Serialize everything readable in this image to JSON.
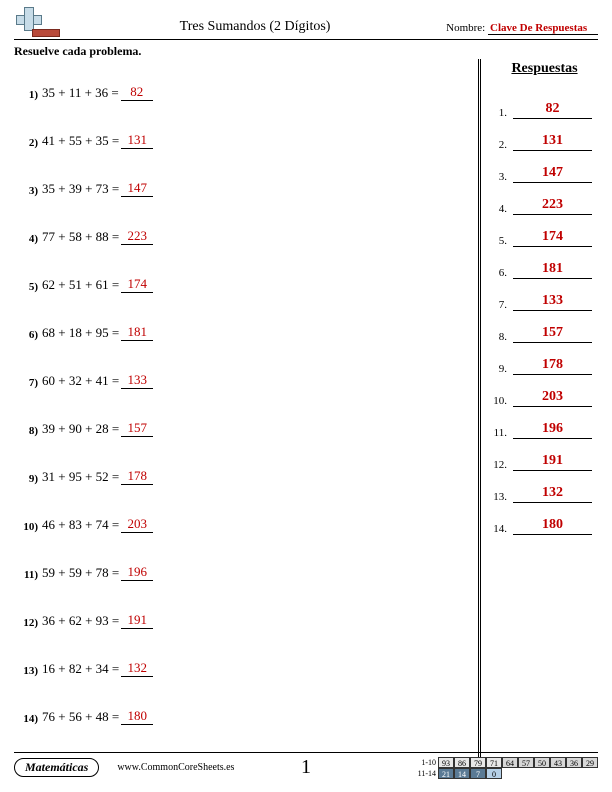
{
  "header": {
    "title": "Tres Sumandos (2 Dígitos)",
    "name_label": "Nombre:",
    "name_value": "Clave De Respuestas"
  },
  "instruction": "Resuelve cada problema.",
  "answers_title": "Respuestas",
  "problems": [
    {
      "n": "1)",
      "expr": "35 + 11 + 36 =",
      "ans": "82"
    },
    {
      "n": "2)",
      "expr": "41 + 55 + 35 =",
      "ans": "131"
    },
    {
      "n": "3)",
      "expr": "35 + 39 + 73 =",
      "ans": "147"
    },
    {
      "n": "4)",
      "expr": "77 + 58 + 88 =",
      "ans": "223"
    },
    {
      "n": "5)",
      "expr": "62 + 51 + 61 =",
      "ans": "174"
    },
    {
      "n": "6)",
      "expr": "68 + 18 + 95 =",
      "ans": "181"
    },
    {
      "n": "7)",
      "expr": "60 + 32 + 41 =",
      "ans": "133"
    },
    {
      "n": "8)",
      "expr": "39 + 90 + 28 =",
      "ans": "157"
    },
    {
      "n": "9)",
      "expr": "31 + 95 + 52 =",
      "ans": "178"
    },
    {
      "n": "10)",
      "expr": "46 + 83 + 74 =",
      "ans": "203"
    },
    {
      "n": "11)",
      "expr": "59 + 59 + 78 =",
      "ans": "196"
    },
    {
      "n": "12)",
      "expr": "36 + 62 + 93 =",
      "ans": "191"
    },
    {
      "n": "13)",
      "expr": "16 + 82 + 34 =",
      "ans": "132"
    },
    {
      "n": "14)",
      "expr": "76 + 56 + 48 =",
      "ans": "180"
    }
  ],
  "answers": [
    {
      "n": "1.",
      "v": "82"
    },
    {
      "n": "2.",
      "v": "131"
    },
    {
      "n": "3.",
      "v": "147"
    },
    {
      "n": "4.",
      "v": "223"
    },
    {
      "n": "5.",
      "v": "174"
    },
    {
      "n": "6.",
      "v": "181"
    },
    {
      "n": "7.",
      "v": "133"
    },
    {
      "n": "8.",
      "v": "157"
    },
    {
      "n": "9.",
      "v": "178"
    },
    {
      "n": "10.",
      "v": "203"
    },
    {
      "n": "11.",
      "v": "196"
    },
    {
      "n": "12.",
      "v": "191"
    },
    {
      "n": "13.",
      "v": "132"
    },
    {
      "n": "14.",
      "v": "180"
    }
  ],
  "footer": {
    "subject": "Matemáticas",
    "site": "www.CommonCoreSheets.es",
    "page": "1",
    "score_rows": [
      {
        "label": "1-10",
        "cells": [
          {
            "v": "93",
            "c": "sc-a"
          },
          {
            "v": "86",
            "c": "sc-a"
          },
          {
            "v": "79",
            "c": "sc-a"
          },
          {
            "v": "71",
            "c": "sc-a"
          },
          {
            "v": "64",
            "c": "sc-b"
          },
          {
            "v": "57",
            "c": "sc-b"
          },
          {
            "v": "50",
            "c": "sc-b"
          },
          {
            "v": "43",
            "c": "sc-b"
          },
          {
            "v": "36",
            "c": "sc-b"
          },
          {
            "v": "29",
            "c": "sc-b"
          }
        ]
      },
      {
        "label": "11-14",
        "cells": [
          {
            "v": "21",
            "c": "sc-c"
          },
          {
            "v": "14",
            "c": "sc-c"
          },
          {
            "v": "7",
            "c": "sc-c"
          },
          {
            "v": "0",
            "c": "sc-d"
          }
        ]
      }
    ]
  },
  "colors": {
    "answer_text": "#c00000",
    "background": "#ffffff"
  }
}
